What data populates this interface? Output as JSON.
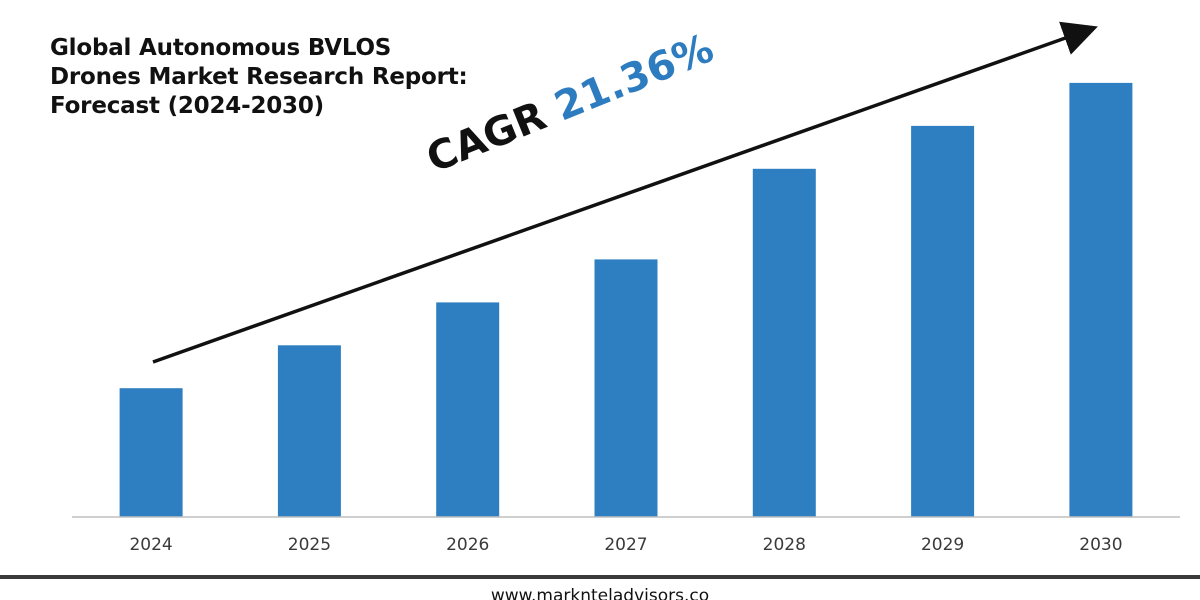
{
  "chart_data": {
    "type": "bar",
    "title_lines": [
      "Global Autonomous BVLOS",
      "Drones Market Research Report:",
      "Forecast (2024-2030)"
    ],
    "categories": [
      "2024",
      "2025",
      "2026",
      "2027",
      "2028",
      "2029",
      "2030"
    ],
    "values": [
      27,
      36,
      45,
      54,
      73,
      82,
      91
    ],
    "ylim": [
      0,
      100
    ],
    "grid": false,
    "legend": "none",
    "bar_color": "#2e7fc1",
    "trend_arrow": true,
    "annotation": {
      "label": "CAGR",
      "value": "21.36%",
      "label_color": "#111111",
      "value_color": "#2e7cc0"
    }
  },
  "footer": {
    "url": "www.marknteladvisors.co"
  }
}
